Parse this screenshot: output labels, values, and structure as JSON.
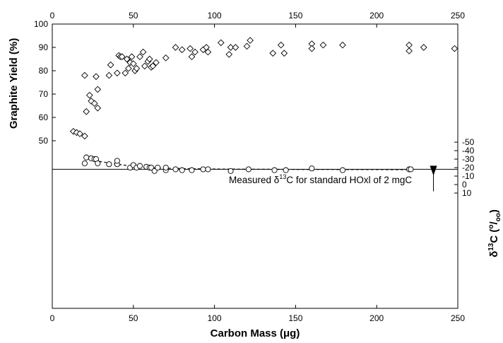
{
  "chart_data": {
    "type": "scatter",
    "title": "",
    "xlabel": "Carbon Mass (μg)",
    "xlim": [
      0,
      250
    ],
    "x_ticks": [
      "0",
      "50",
      "100",
      "150",
      "200",
      "250"
    ],
    "top_x_ticks": [
      "0",
      "50",
      "100",
      "150",
      "200",
      "250"
    ],
    "grid": false,
    "legend": "none",
    "panels": [
      {
        "name": "graphite-yield",
        "ylabel": "Graphite Yield (%)",
        "axis_side": "left",
        "ylim": [
          50,
          100
        ],
        "y_ticks": [
          "50",
          "60",
          "70",
          "80",
          "90",
          "100"
        ],
        "marker": "diamond",
        "points": [
          [
            13,
            54
          ],
          [
            15,
            53.5
          ],
          [
            17,
            53
          ],
          [
            20,
            52
          ],
          [
            20,
            78
          ],
          [
            21,
            62.5
          ],
          [
            23,
            69.5
          ],
          [
            24,
            67
          ],
          [
            26,
            66
          ],
          [
            27,
            77.5
          ],
          [
            28,
            72
          ],
          [
            28,
            64
          ],
          [
            35,
            78
          ],
          [
            36,
            82.5
          ],
          [
            40,
            79
          ],
          [
            41,
            86.5
          ],
          [
            42,
            86
          ],
          [
            43,
            86
          ],
          [
            45,
            79
          ],
          [
            46,
            85
          ],
          [
            47,
            81
          ],
          [
            48,
            83.5
          ],
          [
            49,
            86
          ],
          [
            50,
            83
          ],
          [
            51,
            80
          ],
          [
            52,
            81
          ],
          [
            54,
            86
          ],
          [
            56,
            88
          ],
          [
            57,
            82
          ],
          [
            59,
            84
          ],
          [
            60,
            85
          ],
          [
            61,
            81.5
          ],
          [
            62,
            82
          ],
          [
            64,
            83.5
          ],
          [
            70,
            85.5
          ],
          [
            76,
            90
          ],
          [
            80,
            89
          ],
          [
            85,
            89.5
          ],
          [
            86,
            86
          ],
          [
            88,
            88
          ],
          [
            93,
            89
          ],
          [
            95,
            90
          ],
          [
            96,
            88
          ],
          [
            104,
            92
          ],
          [
            109,
            87
          ],
          [
            110,
            90
          ],
          [
            113,
            90
          ],
          [
            120,
            90.5
          ],
          [
            122,
            93
          ],
          [
            136,
            87.5
          ],
          [
            141,
            91
          ],
          [
            143,
            87.5
          ],
          [
            160,
            91.5
          ],
          [
            160,
            89.5
          ],
          [
            167,
            91
          ],
          [
            179,
            91
          ],
          [
            220,
            91
          ],
          [
            220,
            88.5
          ],
          [
            229,
            90
          ],
          [
            248,
            89.5
          ]
        ]
      },
      {
        "name": "delta-13c",
        "ylabel": "δ13C (‰)",
        "ylabel_main": "δ",
        "ylabel_sup": "13",
        "ylabel_rest": "C (",
        "ylabel_num": "o",
        "ylabel_den": "oo",
        "ylabel_close": ")",
        "axis_side": "right",
        "ylim": [
          -55,
          10
        ],
        "y_ticks": [
          "10",
          "0",
          "-10",
          "-20",
          "-30",
          "-40",
          "-50"
        ],
        "marker": "circle",
        "points": [
          [
            20,
            -25
          ],
          [
            21,
            -32
          ],
          [
            24,
            -31
          ],
          [
            26,
            -30
          ],
          [
            27,
            -30
          ],
          [
            28,
            -25
          ],
          [
            35,
            -24
          ],
          [
            40,
            -24
          ],
          [
            40,
            -28
          ],
          [
            48,
            -20
          ],
          [
            50,
            -23
          ],
          [
            52,
            -20
          ],
          [
            54,
            -22
          ],
          [
            58,
            -21
          ],
          [
            60,
            -20
          ],
          [
            61,
            -20
          ],
          [
            63,
            -16
          ],
          [
            65,
            -20
          ],
          [
            70,
            -17
          ],
          [
            70,
            -20
          ],
          [
            76,
            -18
          ],
          [
            80,
            -17
          ],
          [
            86,
            -17
          ],
          [
            93,
            -18
          ],
          [
            96,
            -18
          ],
          [
            110,
            -16
          ],
          [
            121,
            -18
          ],
          [
            137,
            -17
          ],
          [
            144,
            -17
          ],
          [
            160,
            -19
          ],
          [
            179,
            -17
          ],
          [
            220,
            -18
          ],
          [
            221,
            -18
          ]
        ],
        "trend_line": {
          "style": "dashed",
          "points": [
            [
              20,
              -31
            ],
            [
              30,
              -27
            ],
            [
              40,
              -24
            ],
            [
              50,
              -21.5
            ],
            [
              60,
              -20
            ],
            [
              75,
              -19
            ],
            [
              100,
              -18.3
            ],
            [
              150,
              -17.8
            ],
            [
              221,
              -17.6
            ]
          ]
        },
        "reference_line": {
          "value": -18
        }
      }
    ],
    "annotation": {
      "text_main": "Measured ",
      "text_delta": "δ",
      "text_sup": "13",
      "text_rest": "C for standard HOxl of 2 mgC",
      "arrow_x": 235,
      "arrow_from": 8,
      "arrow_to": -18
    }
  }
}
